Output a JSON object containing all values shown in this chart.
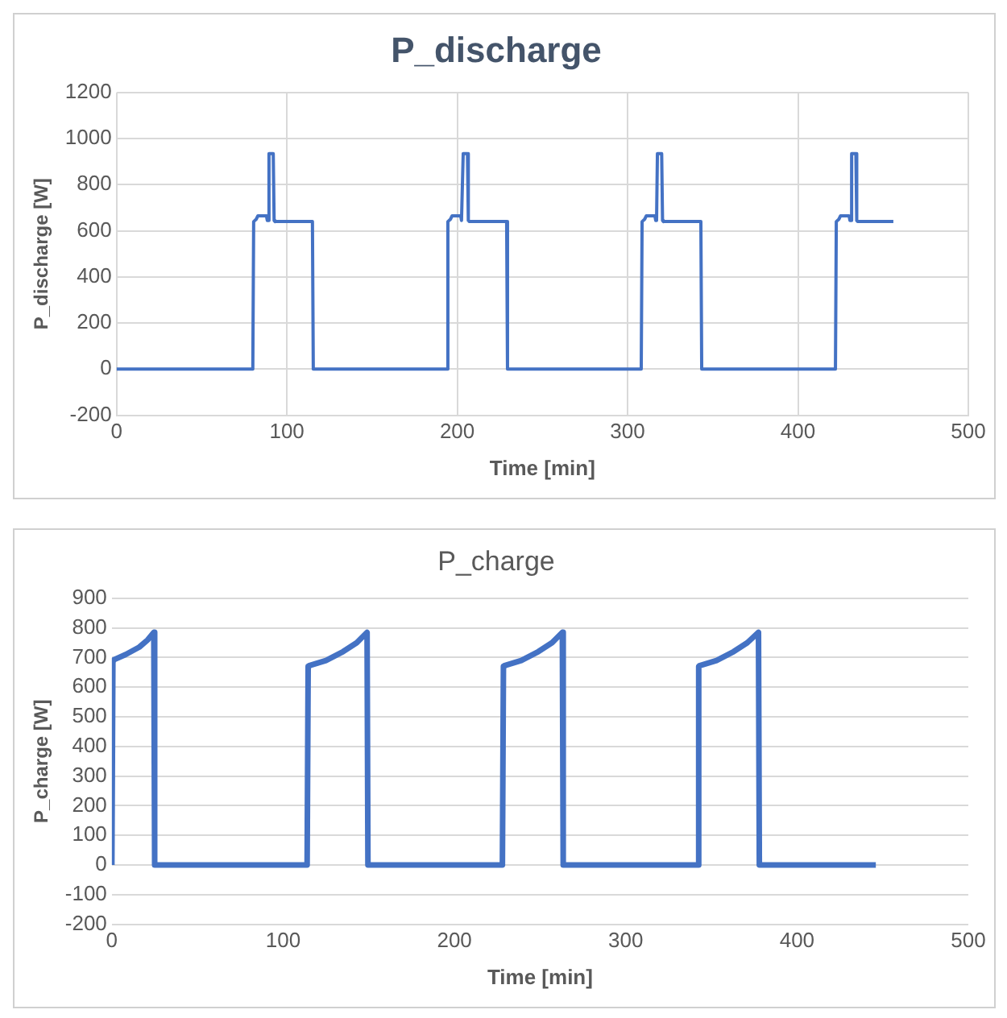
{
  "chart_data": [
    {
      "type": "line",
      "title": "P_discharge",
      "xlabel": "Time [min]",
      "ylabel": "P_discharge [W]",
      "xlim": [
        0,
        500
      ],
      "xticks": [
        0,
        100,
        200,
        300,
        400,
        500
      ],
      "ylim": [
        -200,
        1200
      ],
      "yticks": [
        -200,
        0,
        200,
        400,
        600,
        800,
        1000,
        1200
      ],
      "grid": true,
      "legend": false,
      "x": [
        0,
        80,
        80.5,
        82,
        83,
        88,
        88.5,
        89,
        89.5,
        92,
        92.5,
        93,
        115,
        115.5,
        194,
        194.5,
        196,
        197,
        202,
        202.5,
        203,
        203.5,
        206,
        206.5,
        207,
        229,
        229.5,
        308,
        308.5,
        310,
        311,
        316,
        316.5,
        317,
        317.5,
        320,
        320.5,
        321,
        343,
        343.5,
        422,
        422.5,
        424,
        425,
        430,
        430.5,
        431,
        431.5,
        434,
        434.5,
        435,
        456
      ],
      "series": [
        {
          "color": "#4472c4",
          "values": [
            0,
            0,
            640,
            650,
            665,
            665,
            645,
            645,
            935,
            935,
            645,
            640,
            640,
            0,
            0,
            640,
            650,
            665,
            665,
            645,
            645,
            935,
            935,
            645,
            640,
            640,
            0,
            0,
            640,
            650,
            665,
            665,
            645,
            645,
            935,
            935,
            645,
            640,
            640,
            0,
            0,
            640,
            650,
            665,
            665,
            645,
            645,
            935,
            935,
            645,
            640,
            640
          ]
        }
      ]
    },
    {
      "type": "line",
      "title": "P_charge",
      "xlabel": "Time [min]",
      "ylabel": "P_charge [W]",
      "xlim": [
        0,
        500
      ],
      "xticks": [
        0,
        100,
        200,
        300,
        400,
        500
      ],
      "ylim": [
        -200,
        900
      ],
      "yticks": [
        -200,
        -100,
        0,
        100,
        200,
        300,
        400,
        500,
        600,
        700,
        800,
        900
      ],
      "grid": "y",
      "legend": false,
      "x": [
        0,
        0.6,
        1,
        8,
        16,
        21,
        24.5,
        25,
        114,
        114.6,
        115,
        125,
        135,
        143,
        149,
        149.5,
        228,
        228.6,
        229,
        239,
        249,
        257,
        263,
        263.5,
        342,
        342.6,
        343,
        353,
        363,
        371,
        377.5,
        378,
        446
      ],
      "series": [
        {
          "color": "#4472c4",
          "values": [
            0,
            690,
            692,
            710,
            735,
            760,
            785,
            0,
            0,
            670,
            672,
            690,
            720,
            750,
            785,
            0,
            0,
            670,
            672,
            690,
            720,
            750,
            785,
            0,
            0,
            670,
            672,
            690,
            720,
            750,
            785,
            0,
            0
          ]
        }
      ]
    }
  ]
}
